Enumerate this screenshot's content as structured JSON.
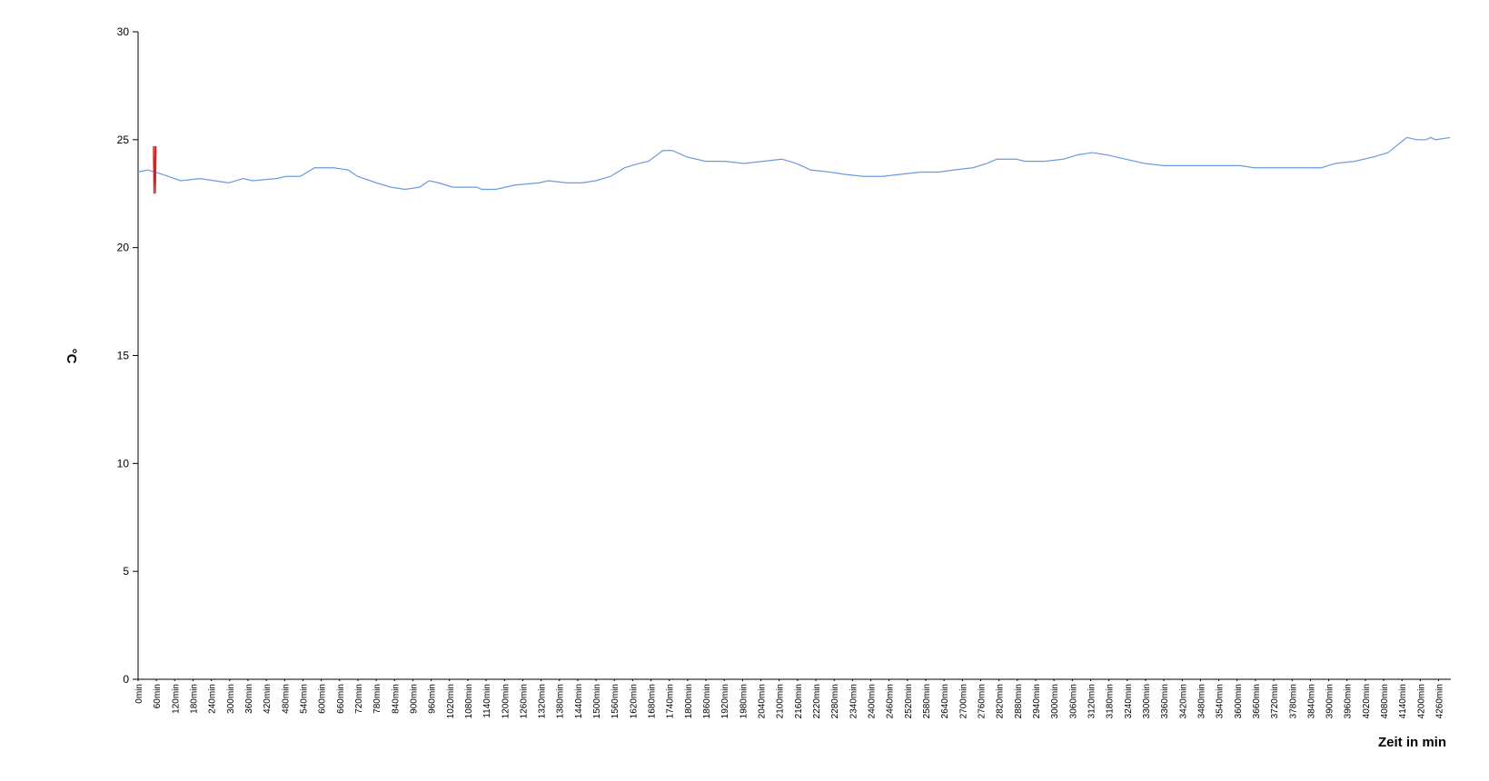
{
  "chart_data": {
    "type": "line",
    "xlabel": "Zeit in min",
    "ylabel": "°C",
    "xlim": [
      0,
      4300
    ],
    "ylim": [
      0,
      30
    ],
    "yticks": [
      0,
      5,
      10,
      15,
      20,
      25,
      30
    ],
    "xticks": [
      {
        "value": 0,
        "label": "0min"
      },
      {
        "value": 60,
        "label": "60min"
      },
      {
        "value": 120,
        "label": "120min"
      },
      {
        "value": 180,
        "label": "180min"
      },
      {
        "value": 240,
        "label": "240min"
      },
      {
        "value": 300,
        "label": "300min"
      },
      {
        "value": 360,
        "label": "360min"
      },
      {
        "value": 420,
        "label": "420min"
      },
      {
        "value": 480,
        "label": "480min"
      },
      {
        "value": 540,
        "label": "540min"
      },
      {
        "value": 600,
        "label": "600min"
      },
      {
        "value": 660,
        "label": "660min"
      },
      {
        "value": 720,
        "label": "720min"
      },
      {
        "value": 780,
        "label": "780min"
      },
      {
        "value": 840,
        "label": "840min"
      },
      {
        "value": 900,
        "label": "900min"
      },
      {
        "value": 960,
        "label": "960min"
      },
      {
        "value": 1020,
        "label": "1020min"
      },
      {
        "value": 1080,
        "label": "1080min"
      },
      {
        "value": 1140,
        "label": "1140min"
      },
      {
        "value": 1200,
        "label": "1200min"
      },
      {
        "value": 1260,
        "label": "1260min"
      },
      {
        "value": 1320,
        "label": "1320min"
      },
      {
        "value": 1380,
        "label": "1380min"
      },
      {
        "value": 1440,
        "label": "1440min"
      },
      {
        "value": 1500,
        "label": "1500min"
      },
      {
        "value": 1560,
        "label": "1560min"
      },
      {
        "value": 1620,
        "label": "1620min"
      },
      {
        "value": 1680,
        "label": "1680min"
      },
      {
        "value": 1740,
        "label": "1740min"
      },
      {
        "value": 1800,
        "label": "1800min"
      },
      {
        "value": 1860,
        "label": "1860min"
      },
      {
        "value": 1920,
        "label": "1920min"
      },
      {
        "value": 1980,
        "label": "1980min"
      },
      {
        "value": 2040,
        "label": "2040min"
      },
      {
        "value": 2100,
        "label": "2100min"
      },
      {
        "value": 2160,
        "label": "2160min"
      },
      {
        "value": 2220,
        "label": "2220min"
      },
      {
        "value": 2280,
        "label": "2280min"
      },
      {
        "value": 2340,
        "label": "2340min"
      },
      {
        "value": 2400,
        "label": "2400min"
      },
      {
        "value": 2460,
        "label": "2460min"
      },
      {
        "value": 2520,
        "label": "2520min"
      },
      {
        "value": 2580,
        "label": "2580min"
      },
      {
        "value": 2640,
        "label": "2640min"
      },
      {
        "value": 2700,
        "label": "2700min"
      },
      {
        "value": 2760,
        "label": "2760min"
      },
      {
        "value": 2820,
        "label": "2820min"
      },
      {
        "value": 2880,
        "label": "2880min"
      },
      {
        "value": 2940,
        "label": "2940min"
      },
      {
        "value": 3000,
        "label": "3000min"
      },
      {
        "value": 3060,
        "label": "3060min"
      },
      {
        "value": 3120,
        "label": "3120min"
      },
      {
        "value": 3180,
        "label": "3180min"
      },
      {
        "value": 3240,
        "label": "3240min"
      },
      {
        "value": 3300,
        "label": "3300min"
      },
      {
        "value": 3360,
        "label": "3360min"
      },
      {
        "value": 3420,
        "label": "3420min"
      },
      {
        "value": 3480,
        "label": "3480min"
      },
      {
        "value": 3540,
        "label": "3540min"
      },
      {
        "value": 3600,
        "label": "3600min"
      },
      {
        "value": 3660,
        "label": "3660min"
      },
      {
        "value": 3720,
        "label": "3720min"
      },
      {
        "value": 3780,
        "label": "3780min"
      },
      {
        "value": 3840,
        "label": "3840min"
      },
      {
        "value": 3900,
        "label": "3900min"
      },
      {
        "value": 3960,
        "label": "3960min"
      },
      {
        "value": 4020,
        "label": "4020min"
      },
      {
        "value": 4080,
        "label": "4080min"
      },
      {
        "value": 4140,
        "label": "4140min"
      },
      {
        "value": 4200,
        "label": "4200min"
      },
      {
        "value": 4260,
        "label": "4260min"
      }
    ],
    "series": [
      {
        "color": "#6a9be0",
        "x": [
          0,
          31,
          78,
          140,
          203,
          297,
          344,
          375,
          453,
          484,
          531,
          578,
          640,
          688,
          719,
          781,
          828,
          875,
          922,
          953,
          984,
          1031,
          1109,
          1125,
          1172,
          1234,
          1313,
          1344,
          1406,
          1453,
          1500,
          1547,
          1594,
          1641,
          1672,
          1719,
          1750,
          1797,
          1859,
          1922,
          1984,
          2047,
          2109,
          2156,
          2203,
          2266,
          2313,
          2375,
          2438,
          2500,
          2563,
          2625,
          2672,
          2734,
          2781,
          2813,
          2875,
          2906,
          2969,
          3031,
          3078,
          3125,
          3172,
          3234,
          3297,
          3359,
          3422,
          3609,
          3656,
          3797,
          3875,
          3922,
          3984,
          4047,
          4094,
          4156,
          4188,
          4219,
          4234,
          4250,
          4297
        ],
        "values": [
          23.5,
          23.6,
          23.4,
          23.1,
          23.2,
          23.0,
          23.2,
          23.1,
          23.2,
          23.3,
          23.3,
          23.7,
          23.7,
          23.6,
          23.3,
          23.0,
          22.8,
          22.7,
          22.8,
          23.1,
          23.0,
          22.8,
          22.8,
          22.7,
          22.7,
          22.9,
          23.0,
          23.1,
          23.0,
          23.0,
          23.1,
          23.3,
          23.7,
          23.9,
          24.0,
          24.5,
          24.5,
          24.2,
          24.0,
          24.0,
          23.9,
          24.0,
          24.1,
          23.9,
          23.6,
          23.5,
          23.4,
          23.3,
          23.3,
          23.4,
          23.5,
          23.5,
          23.6,
          23.7,
          23.9,
          24.1,
          24.1,
          24.0,
          24.0,
          24.1,
          24.3,
          24.4,
          24.3,
          24.1,
          23.9,
          23.8,
          23.8,
          23.8,
          23.7,
          23.7,
          23.7,
          23.9,
          24.0,
          24.2,
          24.4,
          25.1,
          25.0,
          25.0,
          25.1,
          25.0,
          25.1
        ]
      },
      {
        "color": "#d42020",
        "x": [
          50,
          52,
          55,
          57,
          59
        ],
        "values": [
          24.7,
          22.5,
          24.7,
          22.5,
          24.7
        ]
      }
    ]
  }
}
